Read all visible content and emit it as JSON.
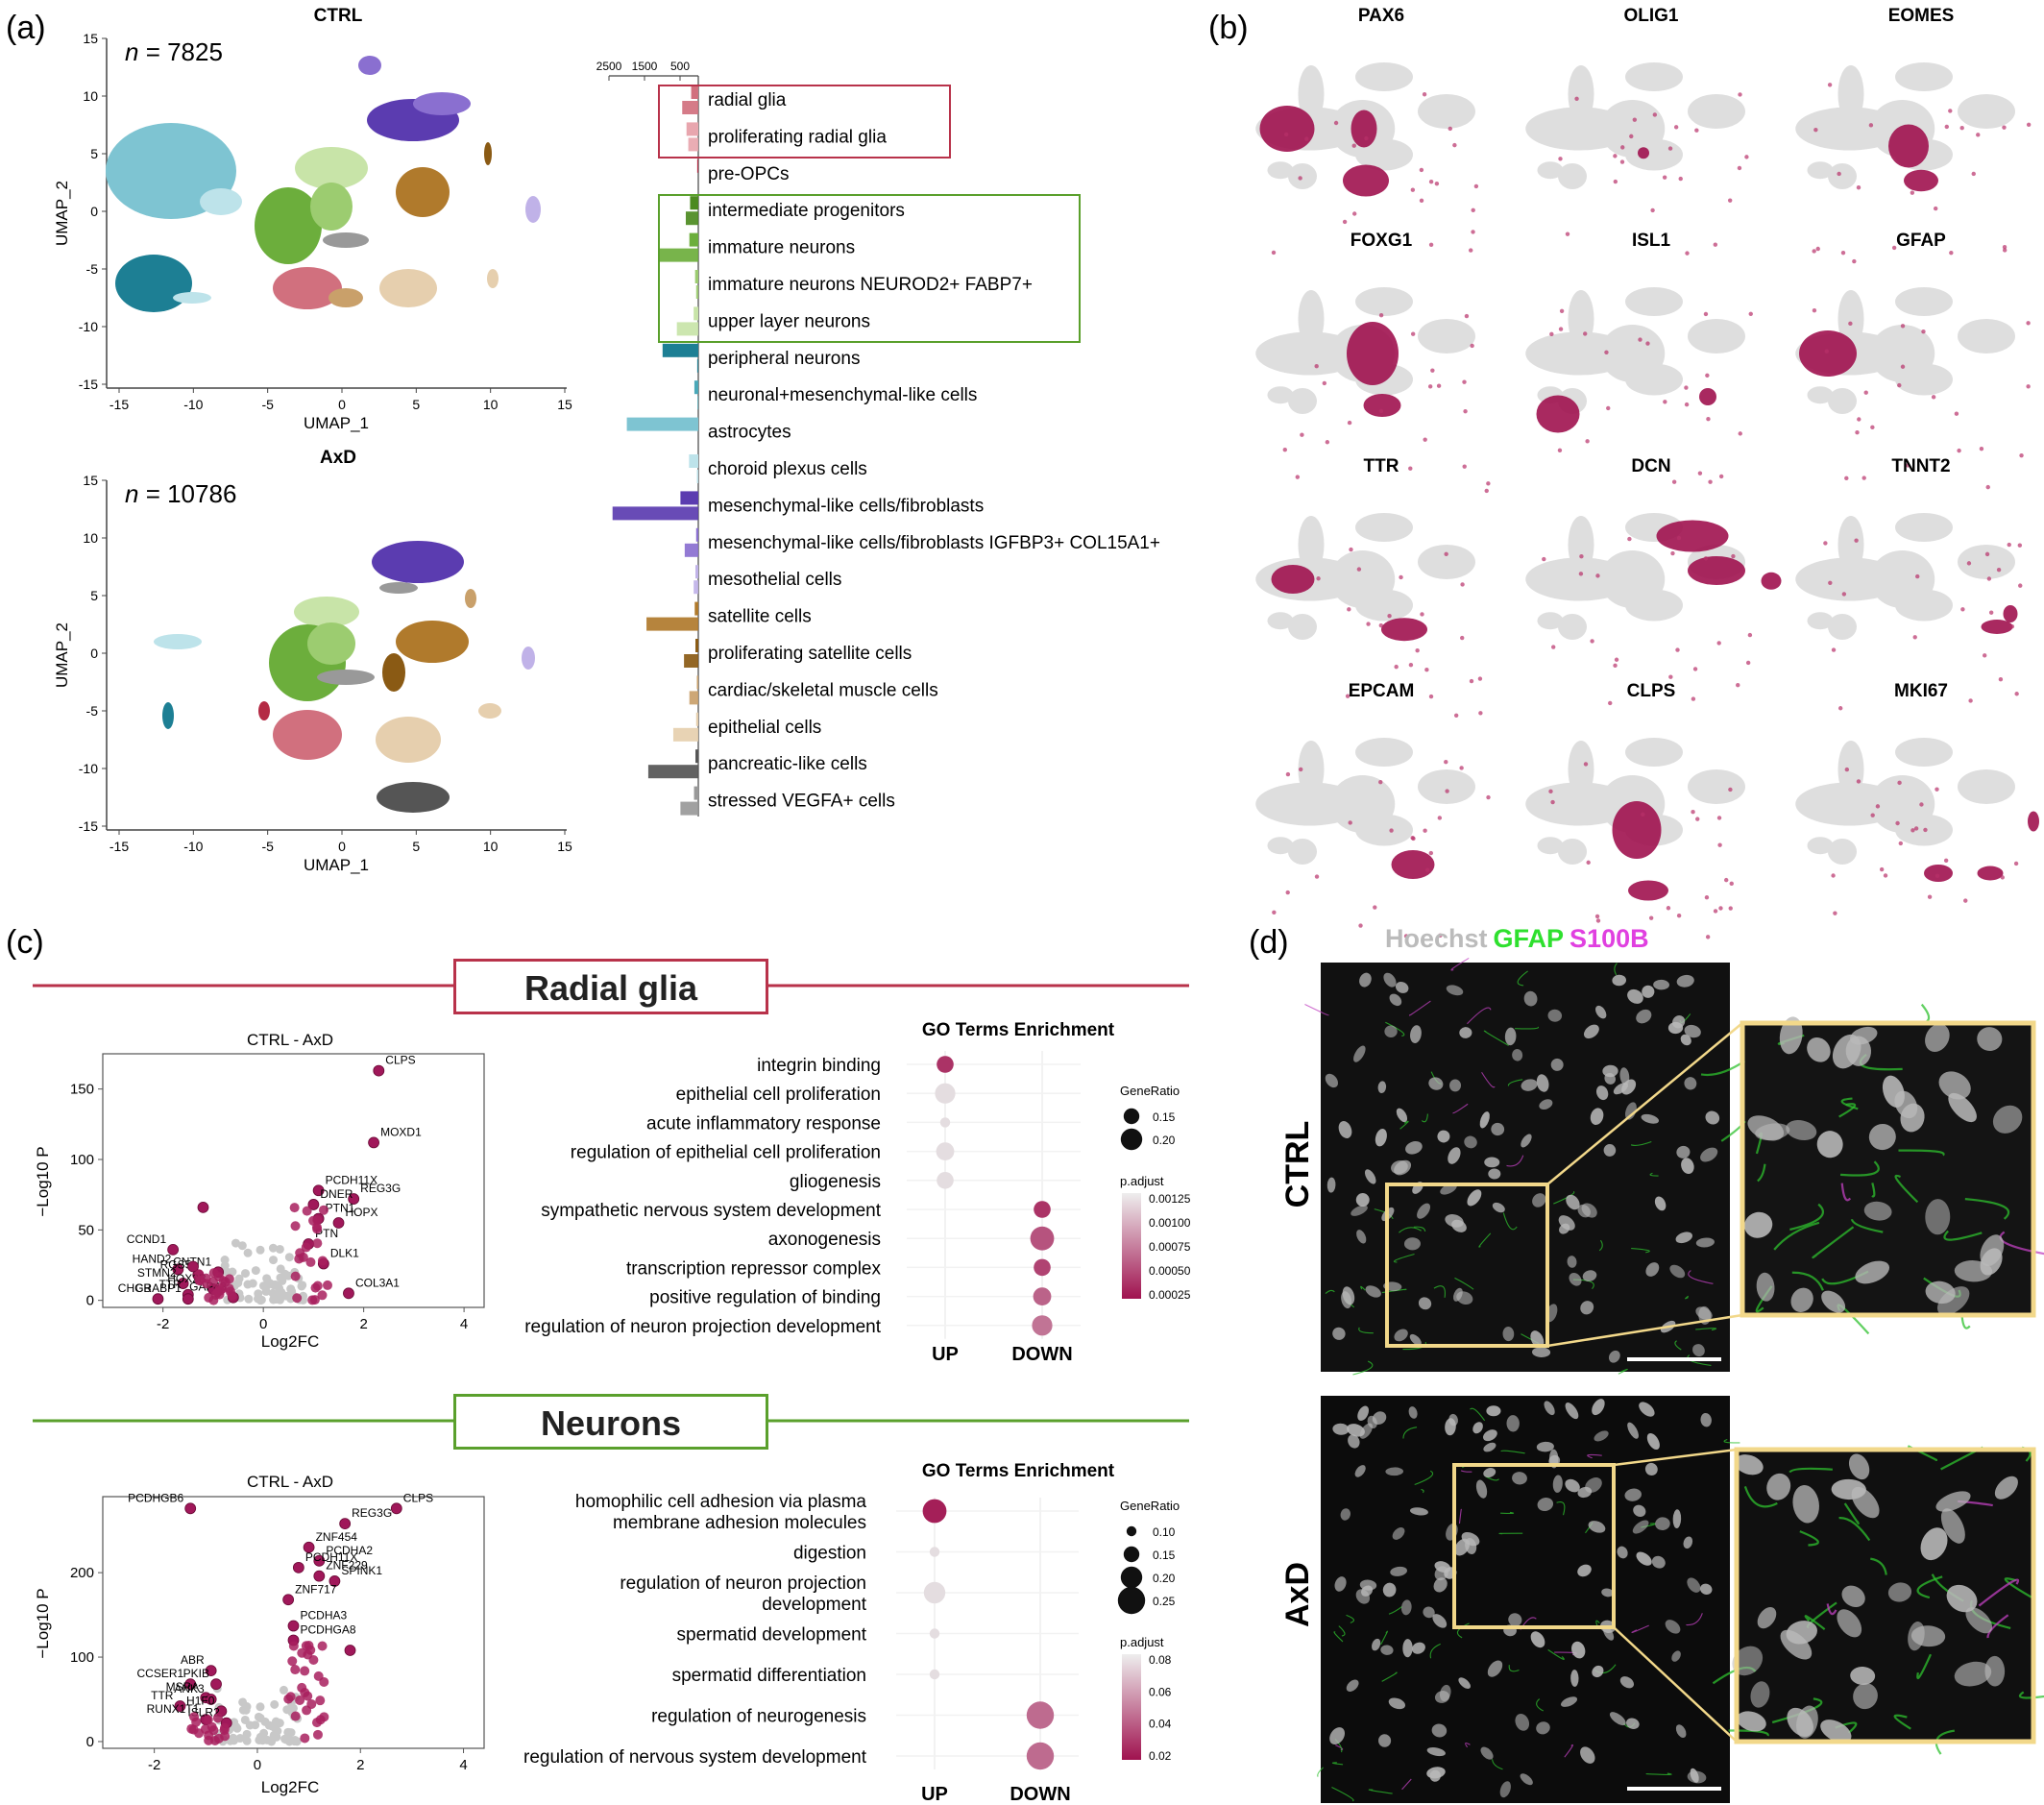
{
  "panel_labels": {
    "a": "(a)",
    "b": "(b)",
    "c": "(c)",
    "d": "(d)"
  },
  "panel_a": {
    "umaps": [
      {
        "title": "CTRL",
        "n_label": "n",
        "n_value": " = 7825",
        "xlabel": "UMAP_1",
        "ylabel": "UMAP_2",
        "xticks": [
          "-15",
          "-10",
          "-5",
          "0",
          "5",
          "10",
          "15"
        ],
        "yticks": [
          "15",
          "10",
          "5",
          "0",
          "-5",
          "-10",
          "-15"
        ]
      },
      {
        "title": "AxD",
        "n_label": "n",
        "n_value": " = 10786",
        "xlabel": "UMAP_1",
        "ylabel": "UMAP_2",
        "xticks": [
          "-15",
          "-10",
          "-5",
          "0",
          "5",
          "10",
          "15"
        ],
        "yticks": [
          "15",
          "10",
          "5",
          "0",
          "-5",
          "-10",
          "-15"
        ]
      }
    ],
    "bar_axis_ticks": [
      "2500",
      "1500",
      "500"
    ],
    "cell_types": [
      "radial glia",
      "proliferating radial glia",
      "pre-OPCs",
      "intermediate progenitors",
      "immature neurons",
      "immature neurons NEUROD2+ FABP7+",
      "upper layer neurons",
      "peripheral neurons",
      "neuronal+mesenchymal-like cells",
      "astrocytes",
      "choroid plexus cells",
      "mesenchymal-like cells/fibroblasts",
      "mesenchymal-like cells/fibroblasts IGFBP3+ COL15A1+",
      "mesothelial cells",
      "satellite cells",
      "proliferating satellite cells",
      "cardiac/skeletal muscle cells",
      "epithelial cells",
      "pancreatic-like cells",
      "stressed VEGFA+ cells"
    ],
    "colors": {
      "radial_box": "#b8324a",
      "neuron_box": "#5aa02c"
    }
  },
  "chart_data": [
    {
      "type": "bar",
      "orientation": "horizontal",
      "categories": [
        "radial glia",
        "proliferating radial glia",
        "pre-OPCs",
        "intermediate progenitors",
        "immature neurons",
        "immature neurons NEUROD2+ FABP7+",
        "upper layer neurons",
        "peripheral neurons",
        "neuronal+mesenchymal-like cells",
        "astrocytes",
        "choroid plexus cells",
        "mesenchymal-like cells/fibroblasts",
        "mesenchymal-like cells/fibroblasts IGFBP3+ COL15A1+",
        "mesothelial cells",
        "satellite cells",
        "proliferating satellite cells",
        "cardiac/skeletal muscle cells",
        "epithelial cells",
        "pancreatic-like cells",
        "stressed VEGFA+ cells"
      ],
      "series": [
        {
          "values": [
            200,
            330,
            30,
            230,
            250,
            90,
            130,
            1000,
            110,
            2000,
            260,
            500,
            60,
            80,
            100,
            80,
            40,
            60,
            80,
            120
          ]
        },
        {
          "values": [
            450,
            280,
            0,
            350,
            1100,
            60,
            600,
            30,
            20,
            0,
            40,
            2400,
            380,
            130,
            1450,
            400,
            250,
            700,
            1400,
            500
          ]
        }
      ],
      "colors": [
        "#d1707e",
        "#e8a6ae",
        "#b42a44",
        "#4c8a20",
        "#6cae3c",
        "#9ccc70",
        "#c8e4a8",
        "#1d7f94",
        "#4aa8b8",
        "#7ec4d2",
        "#bde3ea",
        "#5b3cb0",
        "#8a6fd0",
        "#c0b2e8",
        "#b07a2c",
        "#8a5a14",
        "#c9a06a",
        "#e6cfae",
        "#555555",
        "#999999"
      ],
      "xlim": [
        2500,
        0
      ]
    },
    {
      "type": "scatter",
      "title": "CTRL - AxD",
      "xlabel": "Log2FC",
      "ylabel": "−Log10 P",
      "xticks": [
        "-2",
        "0",
        "2",
        "4"
      ],
      "yticks": [
        "0",
        "50",
        "100",
        "150"
      ],
      "xlim": [
        -3.2,
        4.4
      ],
      "ylim": [
        -5,
        175
      ],
      "points": [
        {
          "label": "CLPS",
          "x": 2.3,
          "y": 163
        },
        {
          "label": "MOXD1",
          "x": 2.2,
          "y": 112
        },
        {
          "label": "PCDH11X",
          "x": 1.1,
          "y": 78
        },
        {
          "label": "REG3G",
          "x": 1.8,
          "y": 72
        },
        {
          "label": "DNER",
          "x": 1.0,
          "y": 68
        },
        {
          "label": "PTN1",
          "x": 1.1,
          "y": 58
        },
        {
          "label": "HOPX",
          "x": 1.5,
          "y": 55
        },
        {
          "label": "PTN",
          "x": 0.9,
          "y": 40
        },
        {
          "label": "DLK1",
          "x": 1.2,
          "y": 26
        },
        {
          "label": "COL3A1",
          "x": 1.7,
          "y": 5
        },
        {
          "label": "CCND1",
          "x": -1.8,
          "y": 36
        },
        {
          "label": "HAND2",
          "x": -1.7,
          "y": 22
        },
        {
          "label": "RGS5",
          "x": -1.3,
          "y": 18
        },
        {
          "label": "CNTN1",
          "x": -0.9,
          "y": 20
        },
        {
          "label": "STMN2",
          "x": -1.6,
          "y": 12
        },
        {
          "label": "HOX2B",
          "x": -1.0,
          "y": 8
        },
        {
          "label": "TTR",
          "x": -1.5,
          "y": 4
        },
        {
          "label": "CHGB",
          "x": -2.1,
          "y": 1
        },
        {
          "label": "CRABP1",
          "x": -1.5,
          "y": 1
        },
        {
          "label": "GAP43",
          "x": -0.6,
          "y": 2
        },
        {
          "x": -1.2,
          "y": 66
        },
        {
          "x": -1.4,
          "y": 24
        }
      ]
    },
    {
      "type": "scatter",
      "subtype": "dotplot",
      "title": "GO Terms Enrichment",
      "x": [
        "UP",
        "DOWN"
      ],
      "terms": [
        "integrin binding",
        "epithelial cell proliferation",
        "acute inflammatory response",
        "regulation of epithelial cell proliferation",
        "gliogenesis",
        "sympathetic nervous system development",
        "axonogenesis",
        "transcription repressor complex",
        "positive regulation of binding",
        "regulation of neuron projection development"
      ],
      "points": [
        {
          "term": "integrin binding",
          "group": "UP",
          "gene_ratio": 0.16,
          "p_adjust": 0.0002
        },
        {
          "term": "epithelial cell proliferation",
          "group": "UP",
          "gene_ratio": 0.19,
          "p_adjust": 0.00125
        },
        {
          "term": "acute inflammatory response",
          "group": "UP",
          "gene_ratio": 0.1,
          "p_adjust": 0.00125
        },
        {
          "term": "regulation of epithelial cell proliferation",
          "group": "UP",
          "gene_ratio": 0.17,
          "p_adjust": 0.00125
        },
        {
          "term": "gliogenesis",
          "group": "UP",
          "gene_ratio": 0.16,
          "p_adjust": 0.00125
        },
        {
          "term": "sympathetic nervous system development",
          "group": "DOWN",
          "gene_ratio": 0.16,
          "p_adjust": 0.0002
        },
        {
          "term": "axonogenesis",
          "group": "DOWN",
          "gene_ratio": 0.22,
          "p_adjust": 0.0004
        },
        {
          "term": "transcription repressor complex",
          "group": "DOWN",
          "gene_ratio": 0.16,
          "p_adjust": 0.0003
        },
        {
          "term": "positive regulation of binding",
          "group": "DOWN",
          "gene_ratio": 0.17,
          "p_adjust": 0.0005
        },
        {
          "term": "regulation of neuron projection development",
          "group": "DOWN",
          "gene_ratio": 0.19,
          "p_adjust": 0.0006
        }
      ],
      "legend_size_title": "GeneRatio",
      "legend_size": [
        "0.15",
        "0.20"
      ],
      "legend_color_title": "p.adjust",
      "legend_color": [
        "0.00125",
        "0.00100",
        "0.00075",
        "0.00050",
        "0.00025"
      ]
    },
    {
      "type": "scatter",
      "title": "CTRL - AxD",
      "xlabel": "Log2FC",
      "ylabel": "−Log10 P",
      "xticks": [
        "-2",
        "0",
        "2",
        "4"
      ],
      "yticks": [
        "0",
        "100",
        "200"
      ],
      "xlim": [
        -3.0,
        4.4
      ],
      "ylim": [
        -8,
        290
      ],
      "points": [
        {
          "label": "CLPS",
          "x": 2.7,
          "y": 276
        },
        {
          "label": "PCDHGB6",
          "x": -1.3,
          "y": 276
        },
        {
          "label": "REG3G",
          "x": 1.7,
          "y": 258
        },
        {
          "label": "ZNF454",
          "x": 1.0,
          "y": 230
        },
        {
          "label": "PCDHA2",
          "x": 1.2,
          "y": 214
        },
        {
          "label": "PCDH11X",
          "x": 0.8,
          "y": 206
        },
        {
          "label": "ZNF229",
          "x": 1.2,
          "y": 196
        },
        {
          "label": "SPINK1",
          "x": 1.5,
          "y": 190
        },
        {
          "label": "ZNF717",
          "x": 0.6,
          "y": 168
        },
        {
          "label": "PCDHA3",
          "x": 0.7,
          "y": 137
        },
        {
          "label": "PCDHGA8",
          "x": 0.7,
          "y": 120
        },
        {
          "label": "ABR",
          "x": -0.9,
          "y": 84
        },
        {
          "label": "PKIB",
          "x": -0.8,
          "y": 68
        },
        {
          "label": "CCSER1",
          "x": -1.3,
          "y": 68
        },
        {
          "label": "MSRA",
          "x": -1.0,
          "y": 52
        },
        {
          "label": "ANK3",
          "x": -0.9,
          "y": 50
        },
        {
          "label": "TTR",
          "x": -1.5,
          "y": 42
        },
        {
          "label": "H1F0",
          "x": -0.7,
          "y": 36
        },
        {
          "label": "RUNX1T1",
          "x": -1.0,
          "y": 26
        },
        {
          "label": "ISLR2",
          "x": -0.6,
          "y": 22
        },
        {
          "x": 1.8,
          "y": 108
        }
      ]
    },
    {
      "type": "scatter",
      "subtype": "dotplot",
      "title": "GO Terms Enrichment",
      "x": [
        "UP",
        "DOWN"
      ],
      "terms": [
        "homophilic cell adhesion via plasma membrane adhesion molecules",
        "digestion",
        "regulation of neuron projection development",
        "spermatid development",
        "spermatid differentiation",
        "regulation of neurogenesis",
        "regulation of nervous system development"
      ],
      "points": [
        {
          "term": "homophilic cell adhesion via plasma membrane adhesion molecules",
          "group": "UP",
          "gene_ratio": 0.22,
          "p_adjust": 0.005
        },
        {
          "term": "digestion",
          "group": "UP",
          "gene_ratio": 0.1,
          "p_adjust": 0.08
        },
        {
          "term": "regulation of neuron projection development",
          "group": "UP",
          "gene_ratio": 0.2,
          "p_adjust": 0.08
        },
        {
          "term": "spermatid development",
          "group": "UP",
          "gene_ratio": 0.1,
          "p_adjust": 0.08
        },
        {
          "term": "spermatid differentiation",
          "group": "UP",
          "gene_ratio": 0.1,
          "p_adjust": 0.08
        },
        {
          "term": "regulation of neurogenesis",
          "group": "DOWN",
          "gene_ratio": 0.25,
          "p_adjust": 0.035
        },
        {
          "term": "regulation of nervous system development",
          "group": "DOWN",
          "gene_ratio": 0.25,
          "p_adjust": 0.035
        }
      ],
      "legend_size_title": "GeneRatio",
      "legend_size": [
        "0.10",
        "0.15",
        "0.20",
        "0.25"
      ],
      "legend_color_title": "p.adjust",
      "legend_color": [
        "0.08",
        "0.06",
        "0.04",
        "0.02"
      ]
    }
  ],
  "panel_b": {
    "genes": [
      "PAX6",
      "OLIG1",
      "EOMES",
      "FOXG1",
      "ISL1",
      "GFAP",
      "TTR",
      "DCN",
      "TNNT2",
      "EPCAM",
      "CLPS",
      "MKI67"
    ],
    "colors": {
      "expr": "#a0124f",
      "bg": "#dddddd"
    }
  },
  "panel_c": {
    "header_radial": "Radial glia",
    "header_neurons": "Neurons",
    "go_x_labels": [
      "UP",
      "DOWN"
    ],
    "colors": {
      "radial": "#b8324a",
      "neurons": "#5aa02c",
      "point": "#a0185a",
      "gray_point": "#c8c8c8"
    }
  },
  "panel_d": {
    "stain_labels": [
      "Hoechst",
      "GFAP",
      "S100B"
    ],
    "stain_colors": [
      "#bbbbbb",
      "#2ee02e",
      "#e040e0"
    ],
    "rows": [
      "CTRL",
      "AxD"
    ],
    "box_color": "#f2d88a"
  }
}
